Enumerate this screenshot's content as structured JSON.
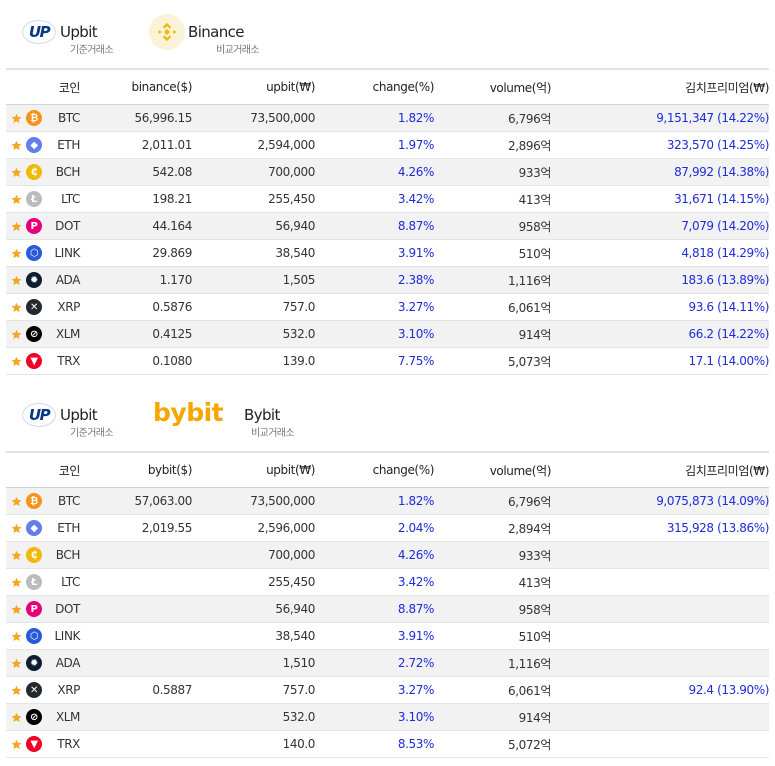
{
  "colors": {
    "btc": "#f7931a",
    "eth": "#627eea",
    "bch": "#f0b90b",
    "ltc": "#bcbcbc",
    "dot": "#e6007a",
    "link": "#2a5ada",
    "ada": "#0d1e30",
    "xrp": "#23292f",
    "xlm": "#000000",
    "trx": "#ef0027",
    "star": "#f5a623",
    "premium": "#1d2bd8"
  },
  "sections": [
    {
      "base": {
        "logo_text": "UP",
        "name": "Upbit",
        "sub": "기준거래소"
      },
      "compare": {
        "name": "Binance",
        "sub": "비교거래소",
        "logo": "binance-diamond"
      },
      "headers": [
        "코인",
        "binance($)",
        "upbit(₩)",
        "change(%)",
        "volume(억)",
        "김치프리미엄(₩)"
      ],
      "rows": [
        {
          "coin": "BTC",
          "icon": "btc",
          "foreign": "56,996.15",
          "upbit": "73,500,000",
          "change": "1.82%",
          "volume": "6,796억",
          "premium": "9,151,347 (14.22%)"
        },
        {
          "coin": "ETH",
          "icon": "eth",
          "foreign": "2,011.01",
          "upbit": "2,594,000",
          "change": "1.97%",
          "volume": "2,896억",
          "premium": "323,570 (14.25%)"
        },
        {
          "coin": "BCH",
          "icon": "bch",
          "foreign": "542.08",
          "upbit": "700,000",
          "change": "4.26%",
          "volume": "933억",
          "premium": "87,992 (14.38%)"
        },
        {
          "coin": "LTC",
          "icon": "ltc",
          "foreign": "198.21",
          "upbit": "255,450",
          "change": "3.42%",
          "volume": "413억",
          "premium": "31,671 (14.15%)"
        },
        {
          "coin": "DOT",
          "icon": "dot",
          "foreign": "44.164",
          "upbit": "56,940",
          "change": "8.87%",
          "volume": "958억",
          "premium": "7,079 (14.20%)"
        },
        {
          "coin": "LINK",
          "icon": "link",
          "foreign": "29.869",
          "upbit": "38,540",
          "change": "3.91%",
          "volume": "510억",
          "premium": "4,818 (14.29%)"
        },
        {
          "coin": "ADA",
          "icon": "ada",
          "foreign": "1.170",
          "upbit": "1,505",
          "change": "2.38%",
          "volume": "1,116억",
          "premium": "183.6 (13.89%)"
        },
        {
          "coin": "XRP",
          "icon": "xrp",
          "foreign": "0.5876",
          "upbit": "757.0",
          "change": "3.27%",
          "volume": "6,061억",
          "premium": "93.6 (14.11%)"
        },
        {
          "coin": "XLM",
          "icon": "xlm",
          "foreign": "0.4125",
          "upbit": "532.0",
          "change": "3.10%",
          "volume": "914억",
          "premium": "66.2 (14.22%)"
        },
        {
          "coin": "TRX",
          "icon": "trx",
          "foreign": "0.1080",
          "upbit": "139.0",
          "change": "7.75%",
          "volume": "5,073억",
          "premium": "17.1 (14.00%)"
        }
      ]
    },
    {
      "base": {
        "logo_text": "UP",
        "name": "Upbit",
        "sub": "기준거래소"
      },
      "compare": {
        "name": "Bybit",
        "sub": "비교거래소",
        "logo_text": "bybit"
      },
      "headers": [
        "코인",
        "bybit($)",
        "upbit(₩)",
        "change(%)",
        "volume(억)",
        "김치프리미엄(₩)"
      ],
      "rows": [
        {
          "coin": "BTC",
          "icon": "btc",
          "foreign": "57,063.00",
          "upbit": "73,500,000",
          "change": "1.82%",
          "volume": "6,796억",
          "premium": "9,075,873 (14.09%)"
        },
        {
          "coin": "ETH",
          "icon": "eth",
          "foreign": "2,019.55",
          "upbit": "2,596,000",
          "change": "2.04%",
          "volume": "2,894억",
          "premium": "315,928 (13.86%)"
        },
        {
          "coin": "BCH",
          "icon": "bch",
          "foreign": "",
          "upbit": "700,000",
          "change": "4.26%",
          "volume": "933억",
          "premium": ""
        },
        {
          "coin": "LTC",
          "icon": "ltc",
          "foreign": "",
          "upbit": "255,450",
          "change": "3.42%",
          "volume": "413억",
          "premium": ""
        },
        {
          "coin": "DOT",
          "icon": "dot",
          "foreign": "",
          "upbit": "56,940",
          "change": "8.87%",
          "volume": "958억",
          "premium": ""
        },
        {
          "coin": "LINK",
          "icon": "link",
          "foreign": "",
          "upbit": "38,540",
          "change": "3.91%",
          "volume": "510억",
          "premium": ""
        },
        {
          "coin": "ADA",
          "icon": "ada",
          "foreign": "",
          "upbit": "1,510",
          "change": "2.72%",
          "volume": "1,116억",
          "premium": ""
        },
        {
          "coin": "XRP",
          "icon": "xrp",
          "foreign": "0.5887",
          "upbit": "757.0",
          "change": "3.27%",
          "volume": "6,061억",
          "premium": "92.4 (13.90%)"
        },
        {
          "coin": "XLM",
          "icon": "xlm",
          "foreign": "",
          "upbit": "532.0",
          "change": "3.10%",
          "volume": "914억",
          "premium": ""
        },
        {
          "coin": "TRX",
          "icon": "trx",
          "foreign": "",
          "upbit": "140.0",
          "change": "8.53%",
          "volume": "5,072억",
          "premium": ""
        }
      ]
    }
  ]
}
